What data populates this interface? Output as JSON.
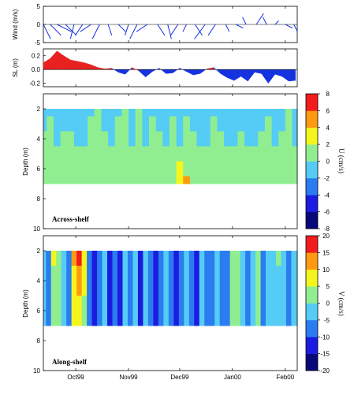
{
  "chart_data": [
    {
      "id": "wind",
      "type": "line",
      "subtype": "stick-plot",
      "ylabel": "Wind (m/s)",
      "ylim": [
        -5,
        5
      ],
      "yticks": [
        "5",
        "0",
        "-5"
      ],
      "x": [
        "Sep 12 1999",
        "Sep 16 1999",
        "Sep 20 1999",
        "Sep 25 1999",
        "Sep 30 1999",
        "Oct 05 1999",
        "Oct 10 1999",
        "Oct 15 1999",
        "Oct 20 1999",
        "Oct 26 1999",
        "Nov 01 1999",
        "Nov 06 1999",
        "Nov 12 1999",
        "Nov 18 1999",
        "Nov 24 1999",
        "Nov 30 1999",
        "Dec 05 1999",
        "Dec 10 1999",
        "Dec 16 1999",
        "Dec 22 1999",
        "Dec 28 1999",
        "Jan 03 2000",
        "Jan 09 2000",
        "Jan 15 2000",
        "Jan 21 2000",
        "Jan 26 2000",
        "Feb 01 2000",
        "Feb 06 2000"
      ],
      "u": [
        2,
        3,
        4,
        3,
        -1,
        -2,
        -3,
        -2,
        1,
        2,
        -1,
        -2,
        -3,
        2,
        1,
        -2,
        -1,
        2,
        -3,
        -2,
        1,
        2,
        -1,
        2,
        -1,
        1,
        2,
        1
      ],
      "v": [
        -4,
        -3,
        -2,
        -3,
        -4,
        -3,
        -2,
        -4,
        -3,
        -2,
        -3,
        -4,
        -2,
        -3,
        -4,
        -3,
        -2,
        -3,
        -4,
        -3,
        -2,
        -1,
        2,
        3,
        2,
        1,
        -1,
        -2
      ]
    },
    {
      "id": "sea-level",
      "type": "area",
      "ylabel": "SL (m)",
      "ylim": [
        -0.25,
        0.3
      ],
      "yticks": [
        "0.2",
        "0.0",
        "-0.2"
      ],
      "x": [
        "Sep 12 1999",
        "Sep 16 1999",
        "Sep 20 1999",
        "Sep 24 1999",
        "Sep 28 1999",
        "Oct 02 1999",
        "Oct 06 1999",
        "Oct 10 1999",
        "Oct 14 1999",
        "Oct 18 1999",
        "Oct 22 1999",
        "Oct 26 1999",
        "Oct 30 1999",
        "Nov 03 1999",
        "Nov 07 1999",
        "Nov 11 1999",
        "Nov 15 1999",
        "Nov 19 1999",
        "Nov 23 1999",
        "Nov 27 1999",
        "Dec 01 1999",
        "Dec 05 1999",
        "Dec 09 1999",
        "Dec 13 1999",
        "Dec 17 1999",
        "Dec 21 1999",
        "Dec 25 1999",
        "Dec 29 1999",
        "Jan 02 2000",
        "Jan 06 2000",
        "Jan 10 2000",
        "Jan 14 2000",
        "Jan 18 2000",
        "Jan 22 2000",
        "Jan 26 2000",
        "Jan 30 2000",
        "Feb 03 2000",
        "Feb 07 2000"
      ],
      "values": [
        0.1,
        0.16,
        0.27,
        0.2,
        0.14,
        0.12,
        0.1,
        0.07,
        0.03,
        0.01,
        0.02,
        -0.04,
        -0.07,
        0.03,
        -0.02,
        -0.11,
        -0.03,
        0.02,
        -0.06,
        -0.05,
        0.02,
        -0.03,
        -0.08,
        -0.06,
        0.01,
        0.03,
        -0.06,
        -0.12,
        -0.16,
        -0.1,
        -0.17,
        -0.04,
        -0.06,
        -0.2,
        -0.07,
        -0.1,
        -0.17,
        -0.16
      ],
      "colors": {
        "positive": "#e8201f",
        "negative": "#1432e0"
      }
    },
    {
      "id": "across-shelf",
      "type": "heatmap",
      "panel_label": "Across-shelf",
      "ylabel": "Depth (m)",
      "ylim": [
        10,
        1
      ],
      "yticks": [
        "2",
        "4",
        "6",
        "8",
        "10"
      ],
      "data_depth_range": [
        2,
        7
      ],
      "colorbar": {
        "label": "U (cm/s)",
        "ticks": [
          "8",
          "6",
          "4",
          "2",
          "0",
          "-2",
          "-4",
          "-6",
          "-8"
        ],
        "vmin": -8,
        "vmax": 8,
        "colors": [
          "#08087a",
          "#1c1ce0",
          "#2a7cf0",
          "#55ccf5",
          "#90ee90",
          "#f5f51e",
          "#ff9a10",
          "#f21c1c"
        ]
      },
      "depth_levels": [
        2,
        3,
        4,
        5,
        6,
        7
      ],
      "x": [
        "Sep 12 1999",
        "Sep 16 1999",
        "Sep 20 1999",
        "Sep 24 1999",
        "Sep 28 1999",
        "Oct 02 1999",
        "Oct 06 1999",
        "Oct 10 1999",
        "Oct 14 1999",
        "Oct 18 1999",
        "Oct 22 1999",
        "Oct 26 1999",
        "Oct 30 1999",
        "Nov 03 1999",
        "Nov 07 1999",
        "Nov 11 1999",
        "Nov 15 1999",
        "Nov 19 1999",
        "Nov 23 1999",
        "Nov 27 1999",
        "Dec 01 1999",
        "Dec 05 1999",
        "Dec 09 1999",
        "Dec 13 1999",
        "Dec 17 1999",
        "Dec 21 1999",
        "Dec 25 1999",
        "Dec 29 1999",
        "Jan 02 2000",
        "Jan 06 2000",
        "Jan 10 2000",
        "Jan 14 2000",
        "Jan 18 2000",
        "Jan 22 2000",
        "Jan 26 2000",
        "Jan 30 2000",
        "Feb 03 2000",
        "Feb 07 2000"
      ],
      "z": [
        [
          -1.0,
          -0.5,
          -1.5,
          -1.5,
          -1.0,
          -1.5,
          -1.5,
          -0.5,
          0.5,
          -1.0,
          -1.5,
          -0.5,
          0.5,
          -1.5,
          0.5,
          -1.5,
          -0.5,
          -1.0,
          -1.5,
          -0.5,
          -1.5,
          -0.5,
          -1.0,
          -1.5,
          -1.5,
          -0.5,
          -1.0,
          -1.5,
          -1.5,
          -1.0,
          -1.5,
          -1.5,
          -1.0,
          -0.5,
          -1.5,
          -1.0,
          0.5,
          -1.5
        ],
        [
          -0.5,
          0.5,
          -1.0,
          -1.0,
          -0.5,
          -1.0,
          -1.0,
          0.5,
          0.5,
          -0.5,
          -1.0,
          0.5,
          0.5,
          -1.0,
          0.5,
          -1.0,
          0.5,
          -0.5,
          -1.0,
          0.5,
          -1.0,
          0.5,
          -0.5,
          -1.0,
          -1.0,
          0.5,
          -0.5,
          -1.0,
          -1.0,
          -0.5,
          -1.0,
          -1.0,
          -0.5,
          0.5,
          -1.0,
          -0.5,
          0.5,
          -1.0
        ],
        [
          0.5,
          0.5,
          -0.5,
          0.5,
          0.5,
          -0.5,
          -0.5,
          0.5,
          0.5,
          0.5,
          -0.5,
          0.5,
          0.5,
          -0.5,
          0.5,
          -0.5,
          0.5,
          0.5,
          -0.5,
          0.5,
          -0.5,
          0.5,
          0.5,
          -0.5,
          -0.5,
          0.5,
          0.5,
          -0.5,
          -0.5,
          0.5,
          -0.5,
          -0.5,
          0.5,
          0.5,
          -0.5,
          0.5,
          0.5,
          -0.5
        ],
        [
          0.5,
          0.5,
          0.5,
          0.5,
          0.5,
          0.5,
          0.5,
          0.5,
          0.5,
          0.5,
          0.5,
          0.5,
          0.5,
          0.5,
          0.5,
          0.5,
          0.5,
          0.5,
          0.5,
          0.5,
          0.5,
          0.5,
          0.5,
          0.5,
          0.5,
          0.5,
          0.5,
          0.5,
          0.5,
          0.5,
          0.5,
          0.5,
          0.5,
          0.5,
          0.5,
          0.5,
          0.5,
          0.5
        ],
        [
          0.5,
          0.5,
          0.5,
          0.5,
          0.5,
          0.5,
          0.5,
          0.5,
          0.5,
          0.5,
          0.5,
          0.5,
          0.5,
          0.5,
          0.5,
          0.5,
          0.5,
          0.5,
          0.5,
          0.5,
          3.0,
          0.5,
          0.5,
          0.5,
          0.5,
          0.5,
          0.5,
          0.5,
          0.5,
          0.5,
          0.5,
          0.5,
          0.5,
          0.5,
          0.5,
          0.5,
          0.5,
          0.5
        ],
        [
          0.5,
          0.5,
          0.5,
          0.5,
          0.5,
          0.5,
          0.5,
          0.5,
          0.5,
          0.5,
          0.5,
          0.5,
          0.5,
          0.5,
          0.5,
          0.5,
          0.5,
          0.5,
          0.5,
          0.5,
          3.0,
          5.0,
          0.5,
          0.5,
          0.5,
          0.5,
          0.5,
          0.5,
          0.5,
          0.5,
          0.5,
          0.5,
          0.5,
          0.5,
          0.5,
          0.5,
          0.5,
          0.5
        ]
      ]
    },
    {
      "id": "along-shelf",
      "type": "heatmap",
      "panel_label": "Along-shelf",
      "ylabel": "Depth (m)",
      "ylim": [
        10,
        1
      ],
      "yticks": [
        "2",
        "4",
        "6",
        "8",
        "10"
      ],
      "data_depth_range": [
        2,
        7
      ],
      "xticks": [
        "Oct99",
        "Nov99",
        "Dec99",
        "Jan00",
        "Feb00"
      ],
      "colorbar": {
        "label": "V (cm/s)",
        "ticks": [
          "20",
          "15",
          "10",
          "5",
          "0",
          "-5",
          "-10",
          "-15",
          "-20"
        ],
        "vmin": -20,
        "vmax": 20,
        "colors": [
          "#08087a",
          "#1c1ce0",
          "#2a7cf0",
          "#55ccf5",
          "#90ee90",
          "#f5f51e",
          "#ff9a10",
          "#f21c1c"
        ]
      },
      "depth_levels": [
        2,
        4,
        6,
        7
      ],
      "x": [
        "Sep 12 1999",
        "Sep 15 1999",
        "Sep 18 1999",
        "Sep 21 1999",
        "Sep 24 1999",
        "Sep 27 1999",
        "Sep 30 1999",
        "Oct 03 1999",
        "Oct 06 1999",
        "Oct 09 1999",
        "Oct 12 1999",
        "Oct 15 1999",
        "Oct 18 1999",
        "Oct 21 1999",
        "Oct 24 1999",
        "Oct 27 1999",
        "Oct 30 1999",
        "Nov 02 1999",
        "Nov 05 1999",
        "Nov 08 1999",
        "Nov 11 1999",
        "Nov 14 1999",
        "Nov 17 1999",
        "Nov 20 1999",
        "Nov 23 1999",
        "Nov 26 1999",
        "Nov 29 1999",
        "Dec 02 1999",
        "Dec 05 1999",
        "Dec 08 1999",
        "Dec 11 1999",
        "Dec 14 1999",
        "Dec 17 1999",
        "Dec 20 1999",
        "Dec 23 1999",
        "Dec 26 1999",
        "Dec 29 1999",
        "Jan 01 2000",
        "Jan 04 2000",
        "Jan 07 2000",
        "Jan 10 2000",
        "Jan 13 2000",
        "Jan 16 2000",
        "Jan 19 2000",
        "Jan 22 2000",
        "Jan 25 2000",
        "Jan 28 2000",
        "Jan 31 2000",
        "Feb 03 2000",
        "Feb 06 2000"
      ],
      "z": [
        [
          -4,
          -8,
          7,
          3,
          -3,
          -6,
          12,
          16,
          7,
          -6,
          -11,
          -7,
          -3,
          -13,
          -7,
          -12,
          -4,
          -8,
          -3,
          -11,
          -5,
          -8,
          -12,
          -6,
          -3,
          -9,
          -12,
          -6,
          -2,
          -7,
          -12,
          -5,
          -8,
          -6,
          -3,
          -7,
          -9,
          1,
          3,
          -2,
          -6,
          -4,
          2,
          -7,
          -4,
          -3,
          1,
          -5,
          -6,
          -4
        ],
        [
          -4,
          -6,
          2,
          1,
          -3,
          -6,
          8,
          11,
          5,
          -6,
          -11,
          -6,
          -3,
          -13,
          -7,
          -12,
          -4,
          -8,
          -3,
          -11,
          -5,
          -8,
          -12,
          -6,
          -3,
          -9,
          -12,
          -6,
          -2,
          -7,
          -12,
          -5,
          -8,
          -6,
          -3,
          -7,
          -9,
          1,
          3,
          -2,
          -6,
          -4,
          2,
          -7,
          -4,
          -3,
          -3,
          -5,
          -6,
          -4
        ],
        [
          -4,
          -6,
          1,
          1,
          -3,
          -6,
          6,
          8,
          4,
          -6,
          -11,
          -6,
          -3,
          -13,
          -7,
          -12,
          -4,
          -8,
          -3,
          -11,
          -5,
          -8,
          -12,
          -6,
          -3,
          -9,
          -12,
          -6,
          -2,
          -7,
          -12,
          -5,
          -8,
          -6,
          -3,
          -7,
          -9,
          1,
          2,
          -2,
          -6,
          -4,
          1,
          -7,
          -4,
          -3,
          -3,
          -5,
          -6,
          -4
        ],
        [
          -4,
          -6,
          1,
          1,
          -3,
          -6,
          6,
          8,
          4,
          -6,
          -11,
          -6,
          -3,
          -13,
          -7,
          -12,
          -4,
          -8,
          -3,
          -11,
          -5,
          -8,
          -12,
          -6,
          -3,
          -9,
          -12,
          -6,
          -2,
          -7,
          -12,
          -5,
          -8,
          -6,
          -3,
          -7,
          -9,
          1,
          2,
          -2,
          -6,
          -4,
          1,
          -7,
          -4,
          -3,
          -3,
          -5,
          -6,
          -4
        ]
      ]
    }
  ]
}
